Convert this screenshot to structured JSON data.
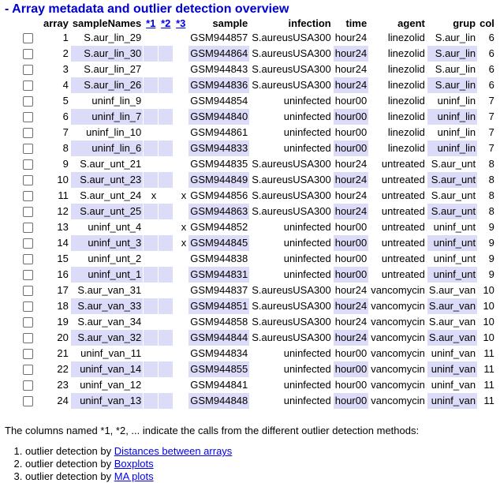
{
  "title": "- Array metadata and outlier detection overview",
  "columns": {
    "array": "array",
    "sampleNames": "sampleNames",
    "m1": "*1",
    "m2": "*2",
    "m3": "*3",
    "sample": "sample",
    "infection": "infection",
    "time": "time",
    "agent": "agent",
    "grup": "grup",
    "col": "col"
  },
  "rows": [
    {
      "array": "1",
      "name": "S.aur_lin_29",
      "m1": "",
      "m2": "",
      "m3": "",
      "sample": "GSM944857",
      "infection": "S.aureusUSA300",
      "time": "hour24",
      "agent": "linezolid",
      "grup": "S.aur_lin",
      "col": "6"
    },
    {
      "array": "2",
      "name": "S.aur_lin_30",
      "m1": "",
      "m2": "",
      "m3": "",
      "sample": "GSM944864",
      "infection": "S.aureusUSA300",
      "time": "hour24",
      "agent": "linezolid",
      "grup": "S.aur_lin",
      "col": "6"
    },
    {
      "array": "3",
      "name": "S.aur_lin_27",
      "m1": "",
      "m2": "",
      "m3": "",
      "sample": "GSM944843",
      "infection": "S.aureusUSA300",
      "time": "hour24",
      "agent": "linezolid",
      "grup": "S.aur_lin",
      "col": "6"
    },
    {
      "array": "4",
      "name": "S.aur_lin_26",
      "m1": "",
      "m2": "",
      "m3": "",
      "sample": "GSM944836",
      "infection": "S.aureusUSA300",
      "time": "hour24",
      "agent": "linezolid",
      "grup": "S.aur_lin",
      "col": "6"
    },
    {
      "array": "5",
      "name": "uninf_lin_9",
      "m1": "",
      "m2": "",
      "m3": "",
      "sample": "GSM944854",
      "infection": "uninfected",
      "time": "hour00",
      "agent": "linezolid",
      "grup": "uninf_lin",
      "col": "7"
    },
    {
      "array": "6",
      "name": "uninf_lin_7",
      "m1": "",
      "m2": "",
      "m3": "",
      "sample": "GSM944840",
      "infection": "uninfected",
      "time": "hour00",
      "agent": "linezolid",
      "grup": "uninf_lin",
      "col": "7"
    },
    {
      "array": "7",
      "name": "uninf_lin_10",
      "m1": "",
      "m2": "",
      "m3": "",
      "sample": "GSM944861",
      "infection": "uninfected",
      "time": "hour00",
      "agent": "linezolid",
      "grup": "uninf_lin",
      "col": "7"
    },
    {
      "array": "8",
      "name": "uninf_lin_6",
      "m1": "",
      "m2": "",
      "m3": "",
      "sample": "GSM944833",
      "infection": "uninfected",
      "time": "hour00",
      "agent": "linezolid",
      "grup": "uninf_lin",
      "col": "7"
    },
    {
      "array": "9",
      "name": "S.aur_unt_21",
      "m1": "",
      "m2": "",
      "m3": "",
      "sample": "GSM944835",
      "infection": "S.aureusUSA300",
      "time": "hour24",
      "agent": "untreated",
      "grup": "S.aur_unt",
      "col": "8"
    },
    {
      "array": "10",
      "name": "S.aur_unt_23",
      "m1": "",
      "m2": "",
      "m3": "",
      "sample": "GSM944849",
      "infection": "S.aureusUSA300",
      "time": "hour24",
      "agent": "untreated",
      "grup": "S.aur_unt",
      "col": "8"
    },
    {
      "array": "11",
      "name": "S.aur_unt_24",
      "m1": "x",
      "m2": "",
      "m3": "x",
      "sample": "GSM944856",
      "infection": "S.aureusUSA300",
      "time": "hour24",
      "agent": "untreated",
      "grup": "S.aur_unt",
      "col": "8"
    },
    {
      "array": "12",
      "name": "S.aur_unt_25",
      "m1": "",
      "m2": "",
      "m3": "",
      "sample": "GSM944863",
      "infection": "S.aureusUSA300",
      "time": "hour24",
      "agent": "untreated",
      "grup": "S.aur_unt",
      "col": "8"
    },
    {
      "array": "13",
      "name": "uninf_unt_4",
      "m1": "",
      "m2": "",
      "m3": "x",
      "sample": "GSM944852",
      "infection": "uninfected",
      "time": "hour00",
      "agent": "untreated",
      "grup": "uninf_unt",
      "col": "9"
    },
    {
      "array": "14",
      "name": "uninf_unt_3",
      "m1": "",
      "m2": "",
      "m3": "x",
      "sample": "GSM944845",
      "infection": "uninfected",
      "time": "hour00",
      "agent": "untreated",
      "grup": "uninf_unt",
      "col": "9"
    },
    {
      "array": "15",
      "name": "uninf_unt_2",
      "m1": "",
      "m2": "",
      "m3": "",
      "sample": "GSM944838",
      "infection": "uninfected",
      "time": "hour00",
      "agent": "untreated",
      "grup": "uninf_unt",
      "col": "9"
    },
    {
      "array": "16",
      "name": "uninf_unt_1",
      "m1": "",
      "m2": "",
      "m3": "",
      "sample": "GSM944831",
      "infection": "uninfected",
      "time": "hour00",
      "agent": "untreated",
      "grup": "uninf_unt",
      "col": "9"
    },
    {
      "array": "17",
      "name": "S.aur_van_31",
      "m1": "",
      "m2": "",
      "m3": "",
      "sample": "GSM944837",
      "infection": "S.aureusUSA300",
      "time": "hour24",
      "agent": "vancomycin",
      "grup": "S.aur_van",
      "col": "10"
    },
    {
      "array": "18",
      "name": "S.aur_van_33",
      "m1": "",
      "m2": "",
      "m3": "",
      "sample": "GSM944851",
      "infection": "S.aureusUSA300",
      "time": "hour24",
      "agent": "vancomycin",
      "grup": "S.aur_van",
      "col": "10"
    },
    {
      "array": "19",
      "name": "S.aur_van_34",
      "m1": "",
      "m2": "",
      "m3": "",
      "sample": "GSM944858",
      "infection": "S.aureusUSA300",
      "time": "hour24",
      "agent": "vancomycin",
      "grup": "S.aur_van",
      "col": "10"
    },
    {
      "array": "20",
      "name": "S.aur_van_32",
      "m1": "",
      "m2": "",
      "m3": "",
      "sample": "GSM944844",
      "infection": "S.aureusUSA300",
      "time": "hour24",
      "agent": "vancomycin",
      "grup": "S.aur_van",
      "col": "10"
    },
    {
      "array": "21",
      "name": "uninf_van_11",
      "m1": "",
      "m2": "",
      "m3": "",
      "sample": "GSM944834",
      "infection": "uninfected",
      "time": "hour00",
      "agent": "vancomycin",
      "grup": "uninf_van",
      "col": "11"
    },
    {
      "array": "22",
      "name": "uninf_van_14",
      "m1": "",
      "m2": "",
      "m3": "",
      "sample": "GSM944855",
      "infection": "uninfected",
      "time": "hour00",
      "agent": "vancomycin",
      "grup": "uninf_van",
      "col": "11"
    },
    {
      "array": "23",
      "name": "uninf_van_12",
      "m1": "",
      "m2": "",
      "m3": "",
      "sample": "GSM944841",
      "infection": "uninfected",
      "time": "hour00",
      "agent": "vancomycin",
      "grup": "uninf_van",
      "col": "11"
    },
    {
      "array": "24",
      "name": "uninf_van_13",
      "m1": "",
      "m2": "",
      "m3": "",
      "sample": "GSM944848",
      "infection": "uninfected",
      "time": "hour00",
      "agent": "vancomycin",
      "grup": "uninf_van",
      "col": "11"
    }
  ],
  "note": "The columns named *1, *2, ... indicate the calls from the different outlier detection methods:",
  "methods": [
    {
      "prefix": "outlier detection by ",
      "link": "Distances between arrays"
    },
    {
      "prefix": "outlier detection by ",
      "link": "Boxplots"
    },
    {
      "prefix": "outlier detection by ",
      "link": "MA plots"
    }
  ],
  "colors": {
    "title": "#0000cc",
    "row_highlight": "#dcdcf8",
    "link": "#0000ee"
  }
}
